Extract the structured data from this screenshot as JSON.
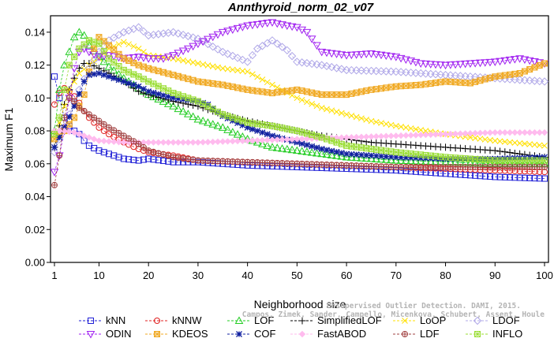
{
  "chart_data": {
    "type": "line",
    "title": "Annthyroid_norm_02_v07",
    "xlabel": "Neighborhood size",
    "ylabel": "Maximum F1",
    "xlim": [
      1,
      100
    ],
    "ylim": [
      0,
      0.15
    ],
    "x_ticks": [
      1,
      10,
      20,
      30,
      40,
      50,
      60,
      70,
      80,
      90,
      100
    ],
    "y_ticks": [
      0.0,
      0.02,
      0.04,
      0.06,
      0.08,
      0.1,
      0.12,
      0.14
    ],
    "y_tick_labels": [
      "0.00",
      "0.02",
      "0.04",
      "0.06",
      "0.08",
      "0.10",
      "0.12",
      "0.14"
    ],
    "grid": false,
    "legend_position": "bottom",
    "watermark": [
      "Campos, Zimek, Sander, Campello, Micenkova, Schubert, Assent, Houle",
      "Unsupervised Outlier Detection. DAMI, 2015."
    ],
    "series": [
      {
        "name": "kNN",
        "color": "#1f1fd6",
        "marker": "square",
        "points": [
          [
            1,
            0.113
          ],
          [
            2,
            0.1
          ],
          [
            3,
            0.088
          ],
          [
            4,
            0.083
          ],
          [
            5,
            0.08
          ],
          [
            6,
            0.078
          ],
          [
            7,
            0.074
          ],
          [
            8,
            0.071
          ],
          [
            10,
            0.068
          ],
          [
            12,
            0.066
          ],
          [
            15,
            0.063
          ],
          [
            18,
            0.062
          ],
          [
            20,
            0.063
          ],
          [
            25,
            0.061
          ],
          [
            30,
            0.061
          ],
          [
            40,
            0.059
          ],
          [
            50,
            0.058
          ],
          [
            60,
            0.057
          ],
          [
            70,
            0.056
          ],
          [
            80,
            0.054
          ],
          [
            90,
            0.052
          ],
          [
            100,
            0.051
          ]
        ]
      },
      {
        "name": "kNNW",
        "color": "#e02020",
        "marker": "circle",
        "points": [
          [
            1,
            0.096
          ],
          [
            2,
            0.103
          ],
          [
            3,
            0.106
          ],
          [
            4,
            0.104
          ],
          [
            5,
            0.101
          ],
          [
            6,
            0.097
          ],
          [
            7,
            0.092
          ],
          [
            8,
            0.088
          ],
          [
            10,
            0.082
          ],
          [
            12,
            0.078
          ],
          [
            15,
            0.073
          ],
          [
            18,
            0.069
          ],
          [
            20,
            0.067
          ],
          [
            25,
            0.065
          ],
          [
            30,
            0.062
          ],
          [
            40,
            0.061
          ],
          [
            50,
            0.06
          ],
          [
            60,
            0.059
          ],
          [
            70,
            0.058
          ],
          [
            80,
            0.057
          ],
          [
            90,
            0.056
          ],
          [
            100,
            0.055
          ]
        ]
      },
      {
        "name": "LOF",
        "color": "#22cc22",
        "marker": "triangle-up",
        "points": [
          [
            1,
            0.08
          ],
          [
            2,
            0.105
          ],
          [
            3,
            0.12
          ],
          [
            4,
            0.128
          ],
          [
            5,
            0.137
          ],
          [
            6,
            0.14
          ],
          [
            7,
            0.138
          ],
          [
            8,
            0.132
          ],
          [
            10,
            0.125
          ],
          [
            12,
            0.119
          ],
          [
            15,
            0.112
          ],
          [
            18,
            0.106
          ],
          [
            20,
            0.102
          ],
          [
            25,
            0.095
          ],
          [
            30,
            0.087
          ],
          [
            35,
            0.082
          ],
          [
            40,
            0.075
          ],
          [
            45,
            0.07
          ],
          [
            50,
            0.068
          ],
          [
            55,
            0.066
          ],
          [
            60,
            0.064
          ],
          [
            70,
            0.062
          ],
          [
            80,
            0.061
          ],
          [
            90,
            0.06
          ],
          [
            100,
            0.06
          ]
        ]
      },
      {
        "name": "SimplifiedLOF",
        "color": "#000000",
        "marker": "plus",
        "points": [
          [
            1,
            0.07
          ],
          [
            2,
            0.083
          ],
          [
            3,
            0.096
          ],
          [
            4,
            0.105
          ],
          [
            5,
            0.112
          ],
          [
            6,
            0.118
          ],
          [
            7,
            0.121
          ],
          [
            8,
            0.121
          ],
          [
            10,
            0.118
          ],
          [
            12,
            0.115
          ],
          [
            15,
            0.11
          ],
          [
            18,
            0.104
          ],
          [
            20,
            0.102
          ],
          [
            25,
            0.098
          ],
          [
            30,
            0.095
          ],
          [
            35,
            0.09
          ],
          [
            40,
            0.086
          ],
          [
            45,
            0.083
          ],
          [
            50,
            0.08
          ],
          [
            55,
            0.077
          ],
          [
            60,
            0.075
          ],
          [
            65,
            0.073
          ],
          [
            70,
            0.072
          ],
          [
            80,
            0.07
          ],
          [
            90,
            0.068
          ],
          [
            100,
            0.064
          ]
        ]
      },
      {
        "name": "LoOP",
        "color": "#ffe000",
        "marker": "x",
        "points": [
          [
            1,
            0.075
          ],
          [
            2,
            0.085
          ],
          [
            3,
            0.095
          ],
          [
            4,
            0.105
          ],
          [
            6,
            0.115
          ],
          [
            8,
            0.12
          ],
          [
            10,
            0.124
          ],
          [
            12,
            0.13
          ],
          [
            15,
            0.134
          ],
          [
            18,
            0.13
          ],
          [
            20,
            0.126
          ],
          [
            25,
            0.124
          ],
          [
            30,
            0.121
          ],
          [
            35,
            0.118
          ],
          [
            40,
            0.116
          ],
          [
            45,
            0.108
          ],
          [
            50,
            0.1
          ],
          [
            55,
            0.094
          ],
          [
            60,
            0.09
          ],
          [
            65,
            0.086
          ],
          [
            70,
            0.083
          ],
          [
            80,
            0.078
          ],
          [
            90,
            0.074
          ],
          [
            100,
            0.071
          ]
        ]
      },
      {
        "name": "LDOF",
        "color": "#b0a8e8",
        "marker": "diamond",
        "points": [
          [
            1,
            0.067
          ],
          [
            2,
            0.075
          ],
          [
            4,
            0.09
          ],
          [
            6,
            0.105
          ],
          [
            8,
            0.118
          ],
          [
            10,
            0.128
          ],
          [
            12,
            0.135
          ],
          [
            15,
            0.14
          ],
          [
            18,
            0.143
          ],
          [
            20,
            0.138
          ],
          [
            25,
            0.14
          ],
          [
            30,
            0.136
          ],
          [
            35,
            0.128
          ],
          [
            40,
            0.122
          ],
          [
            42,
            0.13
          ],
          [
            45,
            0.135
          ],
          [
            48,
            0.129
          ],
          [
            50,
            0.122
          ],
          [
            55,
            0.12
          ],
          [
            60,
            0.117
          ],
          [
            70,
            0.116
          ],
          [
            80,
            0.114
          ],
          [
            90,
            0.112
          ],
          [
            100,
            0.11
          ]
        ]
      },
      {
        "name": "ODIN",
        "color": "#a020f0",
        "marker": "triangle-down",
        "points": [
          [
            1,
            0.055
          ],
          [
            2,
            0.065
          ],
          [
            3,
            0.08
          ],
          [
            4,
            0.1
          ],
          [
            5,
            0.118
          ],
          [
            6,
            0.128
          ],
          [
            7,
            0.13
          ],
          [
            8,
            0.128
          ],
          [
            10,
            0.125
          ],
          [
            12,
            0.126
          ],
          [
            15,
            0.124
          ],
          [
            18,
            0.125
          ],
          [
            20,
            0.124
          ],
          [
            23,
            0.124
          ],
          [
            25,
            0.126
          ],
          [
            28,
            0.13
          ],
          [
            30,
            0.133
          ],
          [
            35,
            0.14
          ],
          [
            40,
            0.144
          ],
          [
            45,
            0.146
          ],
          [
            48,
            0.144
          ],
          [
            50,
            0.143
          ],
          [
            52,
            0.14
          ],
          [
            55,
            0.128
          ],
          [
            60,
            0.126
          ],
          [
            65,
            0.127
          ],
          [
            70,
            0.125
          ],
          [
            75,
            0.121
          ],
          [
            80,
            0.12
          ],
          [
            90,
            0.122
          ],
          [
            95,
            0.124
          ],
          [
            100,
            0.121
          ]
        ]
      },
      {
        "name": "KDEOS",
        "color": "#f0a820",
        "marker": "square-x",
        "points": [
          [
            1,
            0.075
          ],
          [
            3,
            0.08
          ],
          [
            5,
            0.088
          ],
          [
            7,
            0.102
          ],
          [
            9,
            0.13
          ],
          [
            10,
            0.137
          ],
          [
            12,
            0.132
          ],
          [
            15,
            0.124
          ],
          [
            18,
            0.12
          ],
          [
            20,
            0.118
          ],
          [
            25,
            0.114
          ],
          [
            30,
            0.11
          ],
          [
            35,
            0.108
          ],
          [
            40,
            0.105
          ],
          [
            45,
            0.103
          ],
          [
            50,
            0.105
          ],
          [
            55,
            0.102
          ],
          [
            60,
            0.102
          ],
          [
            65,
            0.105
          ],
          [
            70,
            0.107
          ],
          [
            75,
            0.108
          ],
          [
            80,
            0.11
          ],
          [
            85,
            0.109
          ],
          [
            90,
            0.113
          ],
          [
            95,
            0.115
          ],
          [
            100,
            0.121
          ]
        ]
      },
      {
        "name": "COF",
        "color": "#1020a0",
        "marker": "star",
        "points": [
          [
            1,
            0.07
          ],
          [
            3,
            0.082
          ],
          [
            5,
            0.095
          ],
          [
            7,
            0.11
          ],
          [
            8,
            0.114
          ],
          [
            10,
            0.115
          ],
          [
            12,
            0.113
          ],
          [
            15,
            0.11
          ],
          [
            18,
            0.107
          ],
          [
            20,
            0.104
          ],
          [
            25,
            0.1
          ],
          [
            30,
            0.098
          ],
          [
            32,
            0.096
          ],
          [
            35,
            0.089
          ],
          [
            40,
            0.082
          ],
          [
            45,
            0.077
          ],
          [
            50,
            0.073
          ],
          [
            55,
            0.069
          ],
          [
            60,
            0.066
          ],
          [
            70,
            0.064
          ],
          [
            80,
            0.063
          ],
          [
            90,
            0.063
          ],
          [
            100,
            0.064
          ]
        ]
      },
      {
        "name": "FastABOD",
        "color": "#ffbbee",
        "marker": "diamond-filled",
        "points": [
          [
            1,
            0.08
          ],
          [
            3,
            0.08
          ],
          [
            5,
            0.079
          ],
          [
            8,
            0.076
          ],
          [
            10,
            0.074
          ],
          [
            15,
            0.073
          ],
          [
            20,
            0.073
          ],
          [
            25,
            0.073
          ],
          [
            30,
            0.073
          ],
          [
            40,
            0.074
          ],
          [
            50,
            0.075
          ],
          [
            60,
            0.076
          ],
          [
            70,
            0.077
          ],
          [
            80,
            0.078
          ],
          [
            90,
            0.079
          ],
          [
            100,
            0.079
          ]
        ]
      },
      {
        "name": "LDF",
        "color": "#a04040",
        "marker": "circle-plus",
        "points": [
          [
            1,
            0.047
          ],
          [
            2,
            0.065
          ],
          [
            3,
            0.088
          ],
          [
            4,
            0.1
          ],
          [
            5,
            0.098
          ],
          [
            6,
            0.094
          ],
          [
            8,
            0.09
          ],
          [
            10,
            0.086
          ],
          [
            12,
            0.082
          ],
          [
            15,
            0.077
          ],
          [
            18,
            0.072
          ],
          [
            20,
            0.068
          ],
          [
            25,
            0.064
          ],
          [
            30,
            0.062
          ],
          [
            40,
            0.061
          ],
          [
            50,
            0.06
          ],
          [
            60,
            0.059
          ],
          [
            70,
            0.058
          ],
          [
            80,
            0.058
          ],
          [
            90,
            0.058
          ],
          [
            100,
            0.058
          ]
        ]
      },
      {
        "name": "INFLO",
        "color": "#99dd33",
        "marker": "square-star",
        "points": [
          [
            1,
            0.078
          ],
          [
            2,
            0.088
          ],
          [
            3,
            0.105
          ],
          [
            4,
            0.12
          ],
          [
            6,
            0.13
          ],
          [
            8,
            0.135
          ],
          [
            10,
            0.133
          ],
          [
            12,
            0.124
          ],
          [
            15,
            0.117
          ],
          [
            18,
            0.113
          ],
          [
            20,
            0.11
          ],
          [
            25,
            0.103
          ],
          [
            30,
            0.098
          ],
          [
            35,
            0.09
          ],
          [
            40,
            0.085
          ],
          [
            45,
            0.083
          ],
          [
            50,
            0.08
          ],
          [
            55,
            0.076
          ],
          [
            60,
            0.071
          ],
          [
            70,
            0.067
          ],
          [
            80,
            0.064
          ],
          [
            90,
            0.062
          ],
          [
            100,
            0.062
          ]
        ]
      }
    ],
    "legend_rows": [
      [
        "kNN",
        "kNNW",
        "LOF",
        "SimplifiedLOF",
        "LoOP",
        "LDOF"
      ],
      [
        "ODIN",
        "KDEOS",
        "COF",
        "FastABOD",
        "LDF",
        "INFLO"
      ]
    ]
  }
}
